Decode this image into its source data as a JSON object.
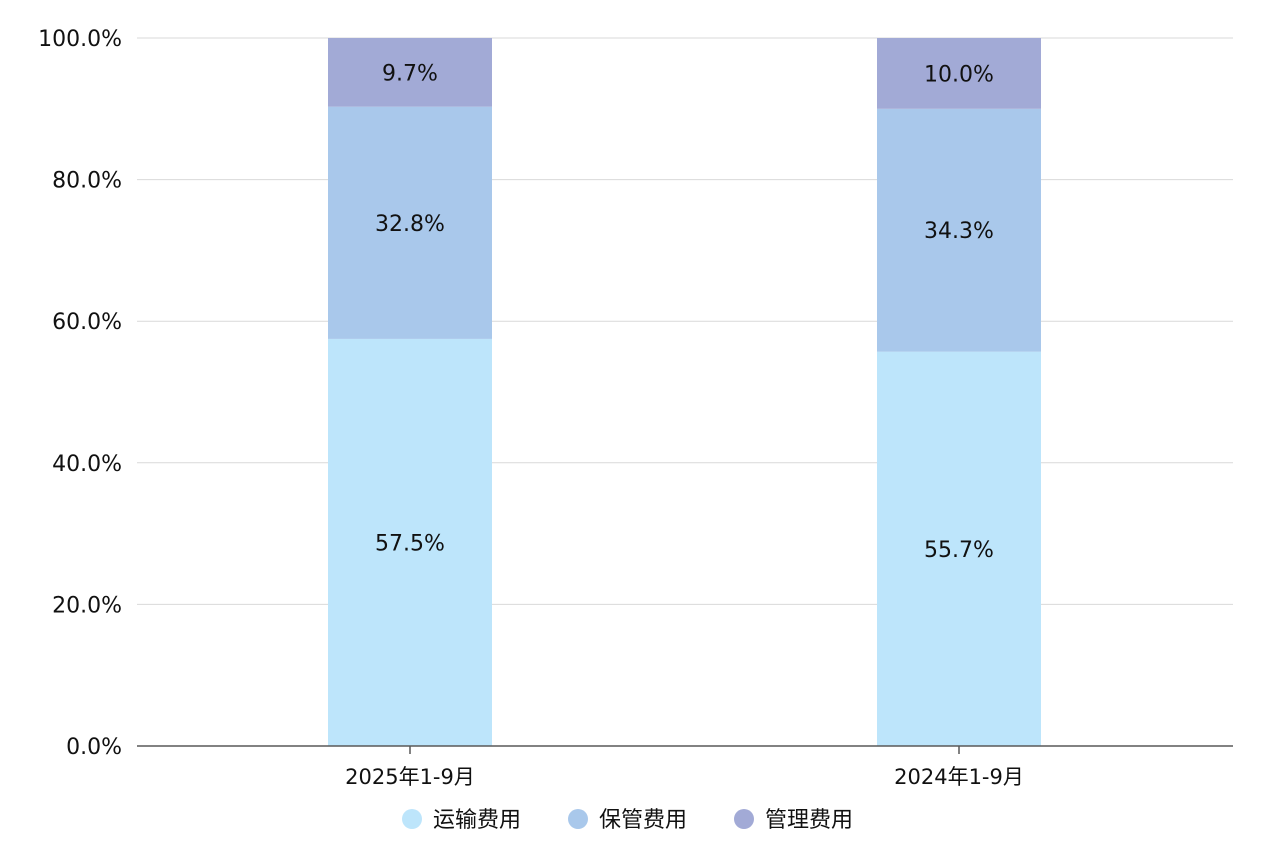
{
  "chart_data": {
    "type": "bar",
    "stacked": true,
    "categories": [
      "2025年1-9月",
      "2024年1-9月"
    ],
    "series": [
      {
        "name": "运输费用",
        "color": "#bde5fb",
        "values": [
          57.5,
          55.7
        ],
        "labels": [
          "57.5%",
          "55.7%"
        ]
      },
      {
        "name": "保管费用",
        "color": "#a9c8eb",
        "values": [
          32.8,
          34.3
        ],
        "labels": [
          "32.8%",
          "34.3%"
        ]
      },
      {
        "name": "管理费用",
        "color": "#a2aad6",
        "values": [
          9.7,
          10.0
        ],
        "labels": [
          "9.7%",
          "10.0%"
        ]
      }
    ],
    "yticks": [
      "0.0%",
      "20.0%",
      "40.0%",
      "60.0%",
      "80.0%",
      "100.0%"
    ],
    "ylim": [
      0,
      100
    ],
    "grid": true,
    "legend_position": "bottom"
  }
}
